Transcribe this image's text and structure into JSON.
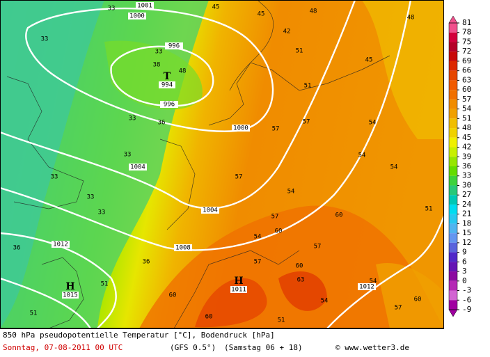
{
  "map": {
    "isobar_labels": [
      "1001",
      "1000",
      "996",
      "996",
      "1000",
      "1004",
      "1004",
      "1008",
      "1012",
      "1012"
    ],
    "centers": [
      {
        "symbol": "T",
        "value": "994"
      },
      {
        "symbol": "H",
        "value": "1011"
      },
      {
        "symbol": "H",
        "value": "1015"
      }
    ],
    "temperature_labels": [
      "33",
      "33",
      "33",
      "33",
      "33",
      "33",
      "33",
      "33",
      "36",
      "36",
      "36",
      "38",
      "48",
      "45",
      "42",
      "45",
      "45",
      "48",
      "51",
      "51",
      "54",
      "57",
      "57",
      "54",
      "57",
      "54",
      "57",
      "60",
      "57",
      "60",
      "63",
      "60",
      "54",
      "51",
      "57",
      "60",
      "54",
      "54",
      "51",
      "48",
      "60",
      "60",
      "57",
      "51",
      "54",
      "51"
    ]
  },
  "legend": {
    "ticks": [
      81,
      78,
      75,
      72,
      69,
      66,
      63,
      60,
      57,
      54,
      51,
      48,
      45,
      42,
      39,
      36,
      33,
      30,
      27,
      24,
      21,
      18,
      15,
      12,
      9,
      6,
      3,
      0,
      -3,
      -6,
      -9
    ],
    "colors": [
      "#f0508c",
      "#d2003c",
      "#b40028",
      "#c80a0a",
      "#dc2800",
      "#e64600",
      "#f05a00",
      "#f07000",
      "#f08c00",
      "#f0a000",
      "#f0be00",
      "#f0d200",
      "#f0f000",
      "#c8f000",
      "#96e600",
      "#64dc00",
      "#3cd23c",
      "#28c878",
      "#00c8b4",
      "#00dcf0",
      "#28c8f0",
      "#50b4f0",
      "#6496f0",
      "#5a64dc",
      "#5028c8",
      "#6414b4",
      "#8c0aa0",
      "#b428b4",
      "#d264d2",
      "#a000a0"
    ]
  },
  "footer": {
    "title": "850 hPa pseudopotentielle Temperatur [°C], Bodendruck [hPa]",
    "date": "Sonntag, 07-08-2011   00 UTC",
    "model": "(GFS 0.5°)",
    "run": "(Samstag 06 + 18)",
    "copyright": "© www.wetter3.de"
  }
}
